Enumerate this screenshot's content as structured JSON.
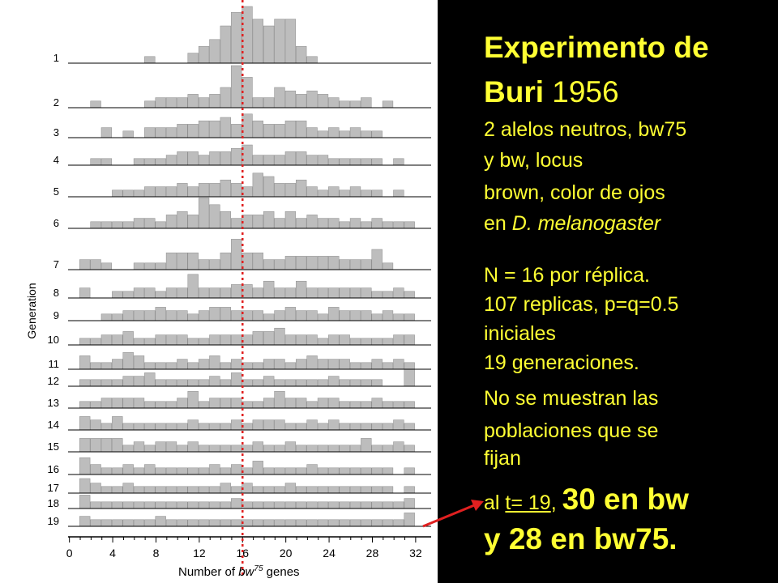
{
  "chart_data": {
    "type": "bar",
    "title": "",
    "xlabel_prefix": "Number of ",
    "xlabel_gene": "bw",
    "xlabel_sup": "75",
    "xlabel_suffix": " genes",
    "ylabel": "Generation",
    "x_ticks": [
      "0",
      "4",
      "8",
      "12",
      "16",
      "20",
      "24",
      "28",
      "32"
    ],
    "xlim": [
      0,
      32
    ],
    "reference_line_x": 16,
    "reference_line_color": "#e02020",
    "bar_color": "#bdbdbd",
    "generations": [
      {
        "label": "1",
        "values": [
          0,
          0,
          0,
          0,
          0,
          0,
          0,
          1,
          0,
          0,
          0,
          2,
          4,
          6,
          10,
          14,
          20,
          12,
          10,
          12,
          12,
          4,
          1,
          0,
          0,
          0,
          0,
          0,
          0,
          0,
          0,
          0,
          0
        ]
      },
      {
        "label": "2",
        "values": [
          0,
          0,
          1,
          0,
          0,
          0,
          0,
          1,
          2,
          2,
          2,
          3,
          2,
          3,
          5,
          12,
          8,
          2,
          2,
          5,
          4,
          3,
          4,
          3,
          2,
          1,
          1,
          2,
          0,
          1,
          0,
          0,
          0
        ]
      },
      {
        "label": "3",
        "values": [
          0,
          0,
          0,
          2,
          0,
          1,
          0,
          2,
          2,
          2,
          3,
          3,
          4,
          4,
          5,
          3,
          6,
          4,
          3,
          3,
          4,
          4,
          2,
          1,
          2,
          1,
          2,
          1,
          1,
          0,
          0,
          0,
          0
        ]
      },
      {
        "label": "4",
        "values": [
          0,
          0,
          1,
          1,
          0,
          0,
          1,
          1,
          1,
          2,
          3,
          3,
          2,
          3,
          3,
          4,
          5,
          2,
          2,
          2,
          3,
          3,
          2,
          2,
          1,
          1,
          1,
          1,
          1,
          0,
          1,
          0,
          0
        ]
      },
      {
        "label": "5",
        "values": [
          0,
          0,
          0,
          0,
          1,
          1,
          1,
          2,
          2,
          2,
          3,
          2,
          3,
          3,
          4,
          3,
          2,
          6,
          5,
          3,
          3,
          4,
          2,
          1,
          2,
          1,
          2,
          1,
          1,
          0,
          1,
          0,
          0
        ]
      },
      {
        "label": "6",
        "values": [
          0,
          0,
          1,
          1,
          1,
          1,
          2,
          2,
          1,
          3,
          4,
          3,
          8,
          6,
          4,
          2,
          3,
          3,
          4,
          2,
          4,
          2,
          3,
          2,
          2,
          1,
          2,
          1,
          2,
          1,
          1,
          1,
          0
        ]
      },
      {
        "label": "7",
        "values": [
          0,
          2,
          2,
          1,
          0,
          0,
          1,
          1,
          1,
          4,
          4,
          4,
          2,
          2,
          4,
          8,
          4,
          4,
          2,
          2,
          3,
          3,
          3,
          3,
          3,
          2,
          2,
          2,
          5,
          1,
          0,
          0,
          0
        ]
      },
      {
        "label": "8",
        "values": [
          0,
          2,
          0,
          0,
          1,
          1,
          2,
          2,
          1,
          2,
          2,
          6,
          2,
          2,
          2,
          3,
          3,
          2,
          4,
          2,
          2,
          4,
          2,
          2,
          2,
          2,
          2,
          2,
          1,
          1,
          2,
          1,
          0
        ]
      },
      {
        "label": "9",
        "values": [
          0,
          0,
          0,
          1,
          1,
          2,
          2,
          2,
          3,
          2,
          2,
          1,
          2,
          3,
          3,
          2,
          2,
          2,
          1,
          2,
          3,
          2,
          2,
          1,
          3,
          2,
          2,
          2,
          1,
          2,
          1,
          1,
          0
        ]
      },
      {
        "label": "10",
        "values": [
          0,
          1,
          1,
          2,
          2,
          3,
          1,
          1,
          2,
          2,
          2,
          1,
          1,
          2,
          2,
          2,
          2,
          3,
          3,
          4,
          2,
          2,
          2,
          1,
          2,
          2,
          1,
          1,
          1,
          1,
          2,
          2,
          0
        ]
      },
      {
        "label": "11",
        "values": [
          0,
          3,
          1,
          1,
          2,
          4,
          3,
          1,
          1,
          1,
          2,
          1,
          2,
          3,
          1,
          2,
          1,
          1,
          2,
          2,
          1,
          2,
          3,
          2,
          2,
          2,
          1,
          1,
          2,
          1,
          2,
          1,
          0
        ]
      },
      {
        "label": "12",
        "values": [
          0,
          1,
          1,
          1,
          1,
          2,
          2,
          3,
          1,
          1,
          1,
          1,
          1,
          2,
          1,
          3,
          1,
          1,
          2,
          1,
          1,
          1,
          1,
          1,
          2,
          1,
          1,
          1,
          1,
          0,
          0,
          4,
          0
        ]
      },
      {
        "label": "13",
        "values": [
          0,
          1,
          1,
          2,
          2,
          2,
          2,
          1,
          1,
          1,
          2,
          4,
          1,
          2,
          2,
          2,
          1,
          1,
          2,
          4,
          2,
          2,
          1,
          2,
          2,
          1,
          1,
          1,
          2,
          1,
          1,
          1,
          0
        ]
      },
      {
        "label": "14",
        "values": [
          0,
          3,
          2,
          1,
          3,
          1,
          1,
          1,
          1,
          1,
          1,
          2,
          1,
          1,
          1,
          2,
          1,
          2,
          2,
          2,
          1,
          1,
          2,
          1,
          2,
          1,
          1,
          1,
          1,
          1,
          2,
          1,
          0
        ]
      },
      {
        "label": "15",
        "values": [
          0,
          3,
          3,
          3,
          3,
          1,
          2,
          1,
          2,
          2,
          1,
          2,
          1,
          1,
          1,
          1,
          1,
          2,
          1,
          1,
          2,
          1,
          1,
          1,
          1,
          1,
          1,
          3,
          1,
          1,
          2,
          1,
          0
        ]
      },
      {
        "label": "16",
        "values": [
          0,
          4,
          2,
          1,
          1,
          2,
          1,
          2,
          1,
          1,
          1,
          1,
          1,
          2,
          1,
          2,
          1,
          3,
          1,
          1,
          1,
          1,
          2,
          1,
          1,
          1,
          1,
          1,
          1,
          1,
          0,
          1,
          0
        ]
      },
      {
        "label": "17",
        "values": [
          0,
          4,
          2,
          1,
          1,
          2,
          1,
          1,
          1,
          1,
          1,
          1,
          1,
          1,
          2,
          1,
          2,
          1,
          1,
          1,
          2,
          1,
          1,
          1,
          1,
          1,
          1,
          1,
          1,
          1,
          0,
          1,
          0
        ]
      },
      {
        "label": "18",
        "values": [
          0,
          3,
          1,
          1,
          1,
          1,
          1,
          1,
          1,
          1,
          1,
          1,
          1,
          1,
          1,
          2,
          1,
          1,
          1,
          1,
          1,
          1,
          1,
          1,
          1,
          1,
          1,
          1,
          1,
          1,
          1,
          2,
          0
        ]
      },
      {
        "label": "19",
        "values": [
          0,
          2,
          1,
          1,
          1,
          1,
          1,
          1,
          2,
          1,
          1,
          1,
          1,
          1,
          1,
          1,
          1,
          1,
          1,
          1,
          1,
          1,
          1,
          1,
          1,
          1,
          1,
          1,
          1,
          1,
          1,
          3,
          0
        ]
      }
    ]
  },
  "text_panel": {
    "title_word1": "Experimento de",
    "title_word2": "Buri",
    "title_year": "1956",
    "desc_line1": "2 alelos neutros, bw75",
    "desc_line2": "y bw, locus",
    "desc_line3": "brown, color de ojos",
    "desc_line4_prefix": "en ",
    "desc_line4_species": "D. melanogaster",
    "stats_line1": "N = 16 por réplica.",
    "stats_line2": "107 replicas, p=q=0.5",
    "stats_line3": "iniciales",
    "stats_line4": "19 generaciones.",
    "stats_line5": "No se muestran las",
    "stats_line6": "poblaciones que se",
    "stats_line7": "fijan",
    "final_prefix": "al ",
    "final_t": "t= 19",
    "final_comma": ",",
    "final_bold1": "30 en bw",
    "final_bold2": "y 28 en bw75."
  },
  "colors": {
    "panel_bg": "#000000",
    "text_color": "#ffff33",
    "arrow_color": "#e02020"
  }
}
